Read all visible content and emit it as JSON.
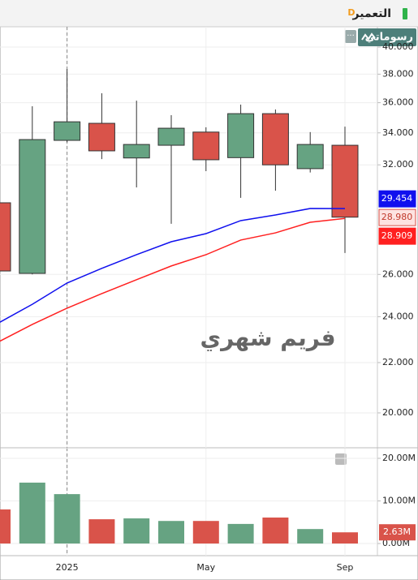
{
  "header": {
    "symbol": "التعمير",
    "interval": "D"
  },
  "logo": "رسوماتي",
  "chart_data": [
    {
      "type": "candlestick",
      "annotation": "فريم شهري",
      "log_scale": true,
      "grid": true,
      "categories": [
        null,
        null,
        "2025",
        null,
        null,
        null,
        "May",
        null,
        null,
        null,
        "Sep"
      ],
      "open": [
        29.78,
        26.05,
        33.52,
        34.62,
        32.42,
        33.21,
        34.05,
        32.44,
        35.26,
        31.77,
        33.21
      ],
      "high": [
        29.9,
        35.76,
        38.37,
        36.65,
        36.14,
        35.16,
        34.36,
        35.87,
        35.54,
        34.05,
        34.4
      ],
      "low": [
        26.1,
        26.0,
        33.4,
        32.35,
        30.66,
        28.62,
        31.62,
        30.06,
        30.47,
        31.54,
        27.08
      ],
      "close": [
        26.17,
        33.57,
        34.72,
        32.86,
        33.26,
        34.3,
        32.31,
        35.26,
        32.0,
        33.26,
        28.98
      ],
      "last_close_label": "28.980",
      "up_color": "#66a382",
      "down_color": "#d9534a",
      "series": [
        {
          "color": "#1010ee",
          "values": [
            23.69,
            24.57,
            25.58,
            26.3,
            26.99,
            27.66,
            28.09,
            28.79,
            29.1,
            29.46,
            29.454
          ]
        },
        {
          "color": "#ff2020",
          "values": [
            22.86,
            23.65,
            24.39,
            25.07,
            25.74,
            26.42,
            26.99,
            27.75,
            28.13,
            28.7,
            28.909
          ]
        }
      ],
      "ylim": [
        18.72,
        41.57
      ],
      "yticks": [
        {
          "value": 20,
          "label": "20.000"
        },
        {
          "value": 22,
          "label": "22.000"
        },
        {
          "value": 24,
          "label": "24.000"
        },
        {
          "value": 26,
          "label": "26.000"
        },
        {
          "value": 32,
          "label": "32.000"
        },
        {
          "value": 34,
          "label": "34.000"
        },
        {
          "value": 36,
          "label": "36.000"
        },
        {
          "value": 38,
          "label": "38.000"
        },
        {
          "value": 40,
          "label": "40.000"
        }
      ]
    },
    {
      "type": "bar",
      "values": [
        8000000,
        14300000,
        11600000,
        5700000,
        5900000,
        5300000,
        5300000,
        4600000,
        6100000,
        3400000,
        2630000
      ],
      "last_label": "2.63M",
      "ylim": [
        -2850000,
        22480000
      ],
      "yticks": [
        {
          "value": 0,
          "label": "0.00M"
        },
        {
          "value": 10000000,
          "label": "10.00M"
        },
        {
          "value": 20000000,
          "label": "20.00M"
        }
      ]
    }
  ]
}
